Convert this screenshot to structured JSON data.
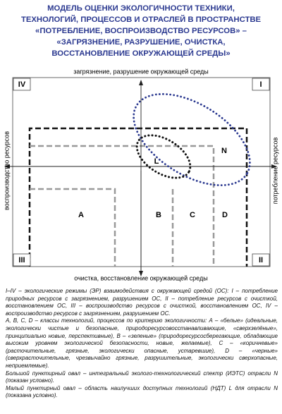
{
  "header": {
    "title_lines": [
      "МОДЕЛЬ ОЦЕНКИ ЭКОЛОГИЧНОСТИ ТЕХНИКИ,",
      "ТЕХНОЛОГИЙ, ПРОЦЕССОВ И ОТРАСЛЕЙ В ПРОСТРАНСТВЕ",
      "«ПОТРЕБЛЕНИЕ, ВОСПРОИЗВОДСТВО РЕСУРСОВ» –",
      "«ЗАГРЯЗНЕНИЕ, РАЗРУШЕНИЕ, ОЧИСТКА,",
      "ВОССТАНОВЛЕНИЕ ОКРУЖАЮЩЕЙ СРЕДЫ»"
    ]
  },
  "diagram": {
    "axes": {
      "top": "загрязнение, разрушение окружающей среды",
      "bottom": "очистка, восстановление окружающей среды",
      "left": "воспроизводство ресурсов",
      "right": "потребление ресурсов"
    },
    "quadrants": {
      "I": "I",
      "II": "II",
      "III": "III",
      "IV": "IV"
    },
    "regions": [
      "A",
      "B",
      "C",
      "D"
    ],
    "ovals": {
      "small": "L",
      "large": "N"
    }
  },
  "caption": [
    "I–IV – экологические режимы (ЭР) взаимодействия с окружающей средой (ОС): I – потребление природных ресурсов с загрязнением, разрушением ОС, II – потребление ресурсов с очисткой, восстановлением ОС, III – воспроизводство ресурсов с очисткой, восстановлением ОС, IV – воспроизводство ресурсов с загрязнением, разрушением ОС.",
    "А, В, С, D – классы технологий, процессов по критерию экологичности: А – «белые» (идеальные, экологически чистые и безопасные, природоресурсовосстанавливающие, «сверхзелёные», принципиально новые, перспективные), В – «зеленые» (природоресурсосберегающие, обладающие высоким уровнем экологической безопасности, новые, желаемые), С – «коричневые» (расточительные, грязные, экологически опасные, устаревшие), D – «черные» (сверхрасточительные, чрезвычайно грязные, разрушительные, экологически сверхопасные, неприемлемые).",
    "Большой пунктирный овал – интегральный эколого-технологический спектр (ИЭТС) отрасли N (показан условно).",
    "Малый пунктирный овал – область наилучших доступных технологий (НДТ) L для отрасли N (показана условно)."
  ]
}
